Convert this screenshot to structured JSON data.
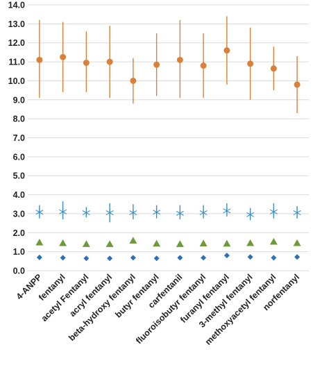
{
  "chart_data": {
    "type": "scatter",
    "title": "",
    "xlabel": "",
    "ylabel": "",
    "ylim": [
      0,
      14
    ],
    "ytick_step": 1,
    "ytick_labels": [
      "0.0",
      "1.0",
      "2.0",
      "3.0",
      "4.0",
      "5.0",
      "6.0",
      "7.0",
      "8.0",
      "9.0",
      "10.0",
      "11.0",
      "12.0",
      "13.0",
      "14.0"
    ],
    "grid": true,
    "legend": "none",
    "categories": [
      "4-ANPP",
      "fentanyl",
      "acetyl Fentanyl",
      "acryl fentanyl",
      "beta-hydroxy fentanyl",
      "butyr fentanyl",
      "carfentanil",
      "fluoroisobutyr fentanyl",
      "furanyl fentanyl",
      "3-methyl fentanyl",
      "methoxyacetyl fentanyl",
      "norfentanyl"
    ],
    "series": [
      {
        "marker": "circle",
        "color": "#d9813a",
        "values": [
          11.1,
          11.25,
          10.95,
          11.0,
          10.0,
          10.85,
          11.1,
          10.8,
          11.6,
          10.9,
          10.65,
          9.8
        ],
        "error_low": [
          9.1,
          9.4,
          9.4,
          9.1,
          8.8,
          9.2,
          9.1,
          9.1,
          9.8,
          9.0,
          9.5,
          8.3
        ],
        "error_high": [
          13.2,
          13.1,
          12.6,
          12.9,
          11.2,
          12.5,
          13.2,
          12.5,
          13.4,
          12.8,
          11.8,
          11.3
        ]
      },
      {
        "marker": "star",
        "color": "#3d8fc6",
        "values": [
          3.08,
          3.1,
          3.05,
          3.05,
          3.05,
          3.08,
          3.02,
          3.05,
          3.15,
          2.95,
          3.1,
          3.05
        ],
        "error_low": [
          2.75,
          2.7,
          2.8,
          2.55,
          2.7,
          2.75,
          2.7,
          2.75,
          2.85,
          2.65,
          2.75,
          2.75
        ],
        "error_high": [
          3.45,
          3.65,
          3.35,
          3.55,
          3.5,
          3.45,
          3.45,
          3.45,
          3.55,
          3.3,
          3.55,
          3.4
        ]
      },
      {
        "marker": "triangle",
        "color": "#6e9a3b",
        "values": [
          1.48,
          1.45,
          1.4,
          1.4,
          1.58,
          1.42,
          1.4,
          1.43,
          1.42,
          1.45,
          1.52,
          1.45
        ]
      },
      {
        "marker": "diamond",
        "color": "#2e6fb6",
        "values": [
          0.7,
          0.68,
          0.65,
          0.65,
          0.68,
          0.65,
          0.68,
          0.68,
          0.8,
          0.72,
          0.68,
          0.72
        ]
      }
    ]
  }
}
